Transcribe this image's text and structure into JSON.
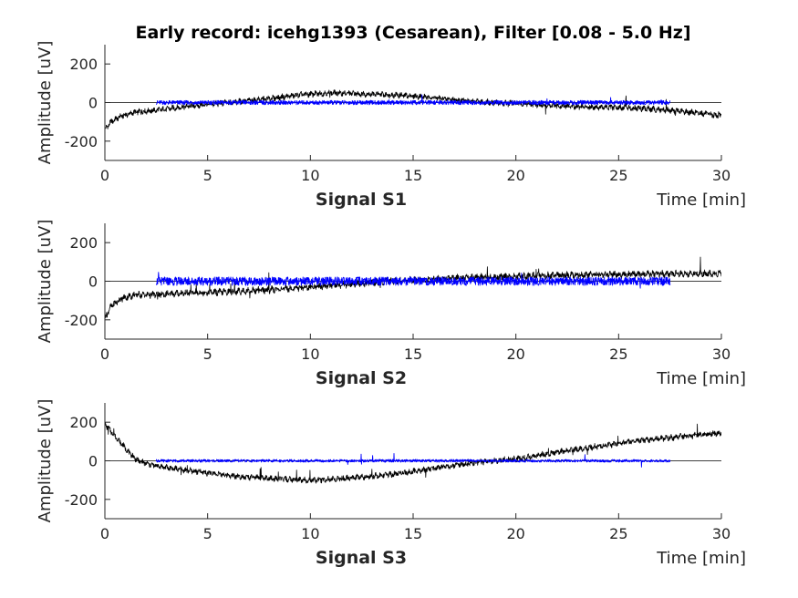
{
  "figure": {
    "title": "Early record: icehg1393 (Cesarean), Filter [0.08 - 5.0 Hz]",
    "colors": {
      "raw": "#000000",
      "filtered": "#0000ff",
      "axes": "#262626"
    }
  },
  "chart_data": [
    {
      "type": "line",
      "name": "S1",
      "xlabel": "Signal S1",
      "xunit_label": "Time [min]",
      "ylabel": "Amplitude [uV]",
      "xlim": [
        0,
        30
      ],
      "ylim": [
        -300,
        300
      ],
      "xticks": [
        0,
        5,
        10,
        15,
        20,
        25,
        30
      ],
      "yticks": [
        -200,
        0,
        200
      ],
      "zero_line": true,
      "series": [
        {
          "color": "#000000",
          "x": [
            0,
            0.3,
            0.8,
            1.5,
            2.5,
            4,
            6,
            8,
            9.5,
            11,
            12.5,
            14,
            15.5,
            17,
            18.5,
            20,
            21.5,
            23,
            24.5,
            26,
            27.5,
            29,
            30
          ],
          "y": [
            -140,
            -100,
            -70,
            -50,
            -40,
            -20,
            0,
            20,
            40,
            50,
            45,
            40,
            30,
            15,
            0,
            -5,
            -15,
            -20,
            -25,
            -30,
            -40,
            -55,
            -70
          ]
        },
        {
          "color": "#0000ff",
          "x": [
            2.5,
            27.5
          ],
          "y": [
            0,
            0
          ]
        }
      ]
    },
    {
      "type": "line",
      "name": "S2",
      "xlabel": "Signal S2",
      "xunit_label": "Time [min]",
      "ylabel": "Amplitude [uV]",
      "xlim": [
        0,
        30
      ],
      "ylim": [
        -300,
        300
      ],
      "xticks": [
        0,
        5,
        10,
        15,
        20,
        25,
        30
      ],
      "yticks": [
        -200,
        0,
        200
      ],
      "zero_line": true,
      "series": [
        {
          "color": "#000000",
          "x": [
            0,
            0.3,
            0.8,
            1.5,
            2.5,
            4,
            6,
            8,
            10,
            12,
            14,
            16,
            18,
            20,
            22,
            24,
            26,
            28,
            30
          ],
          "y": [
            -190,
            -130,
            -90,
            -70,
            -70,
            -60,
            -55,
            -45,
            -30,
            -15,
            0,
            10,
            20,
            25,
            30,
            35,
            35,
            40,
            40
          ]
        },
        {
          "color": "#0000ff",
          "x": [
            2.5,
            27.5
          ],
          "y": [
            0,
            0
          ]
        }
      ]
    },
    {
      "type": "line",
      "name": "S3",
      "xlabel": "Signal S3",
      "xunit_label": "Time [min]",
      "ylabel": "Amplitude [uV]",
      "xlim": [
        0,
        30
      ],
      "ylim": [
        -300,
        300
      ],
      "xticks": [
        0,
        5,
        10,
        15,
        20,
        25,
        30
      ],
      "yticks": [
        -200,
        0,
        200
      ],
      "zero_line": true,
      "series": [
        {
          "color": "#000000",
          "x": [
            0,
            0.4,
            0.8,
            1.2,
            1.6,
            2.2,
            3,
            4,
            5,
            6,
            7,
            8,
            9,
            10,
            11,
            12,
            13,
            14,
            15,
            16,
            17,
            18,
            19,
            20,
            21,
            22,
            23,
            24,
            25,
            26,
            27,
            28,
            29,
            30
          ],
          "y": [
            190,
            140,
            90,
            40,
            0,
            -20,
            -35,
            -50,
            -62,
            -75,
            -85,
            -92,
            -97,
            -100,
            -97,
            -88,
            -80,
            -70,
            -55,
            -40,
            -25,
            -10,
            0,
            10,
            25,
            45,
            60,
            75,
            90,
            105,
            115,
            125,
            135,
            145
          ]
        },
        {
          "color": "#0000ff",
          "x": [
            2.5,
            27.5
          ],
          "y": [
            0,
            0
          ]
        }
      ]
    }
  ]
}
